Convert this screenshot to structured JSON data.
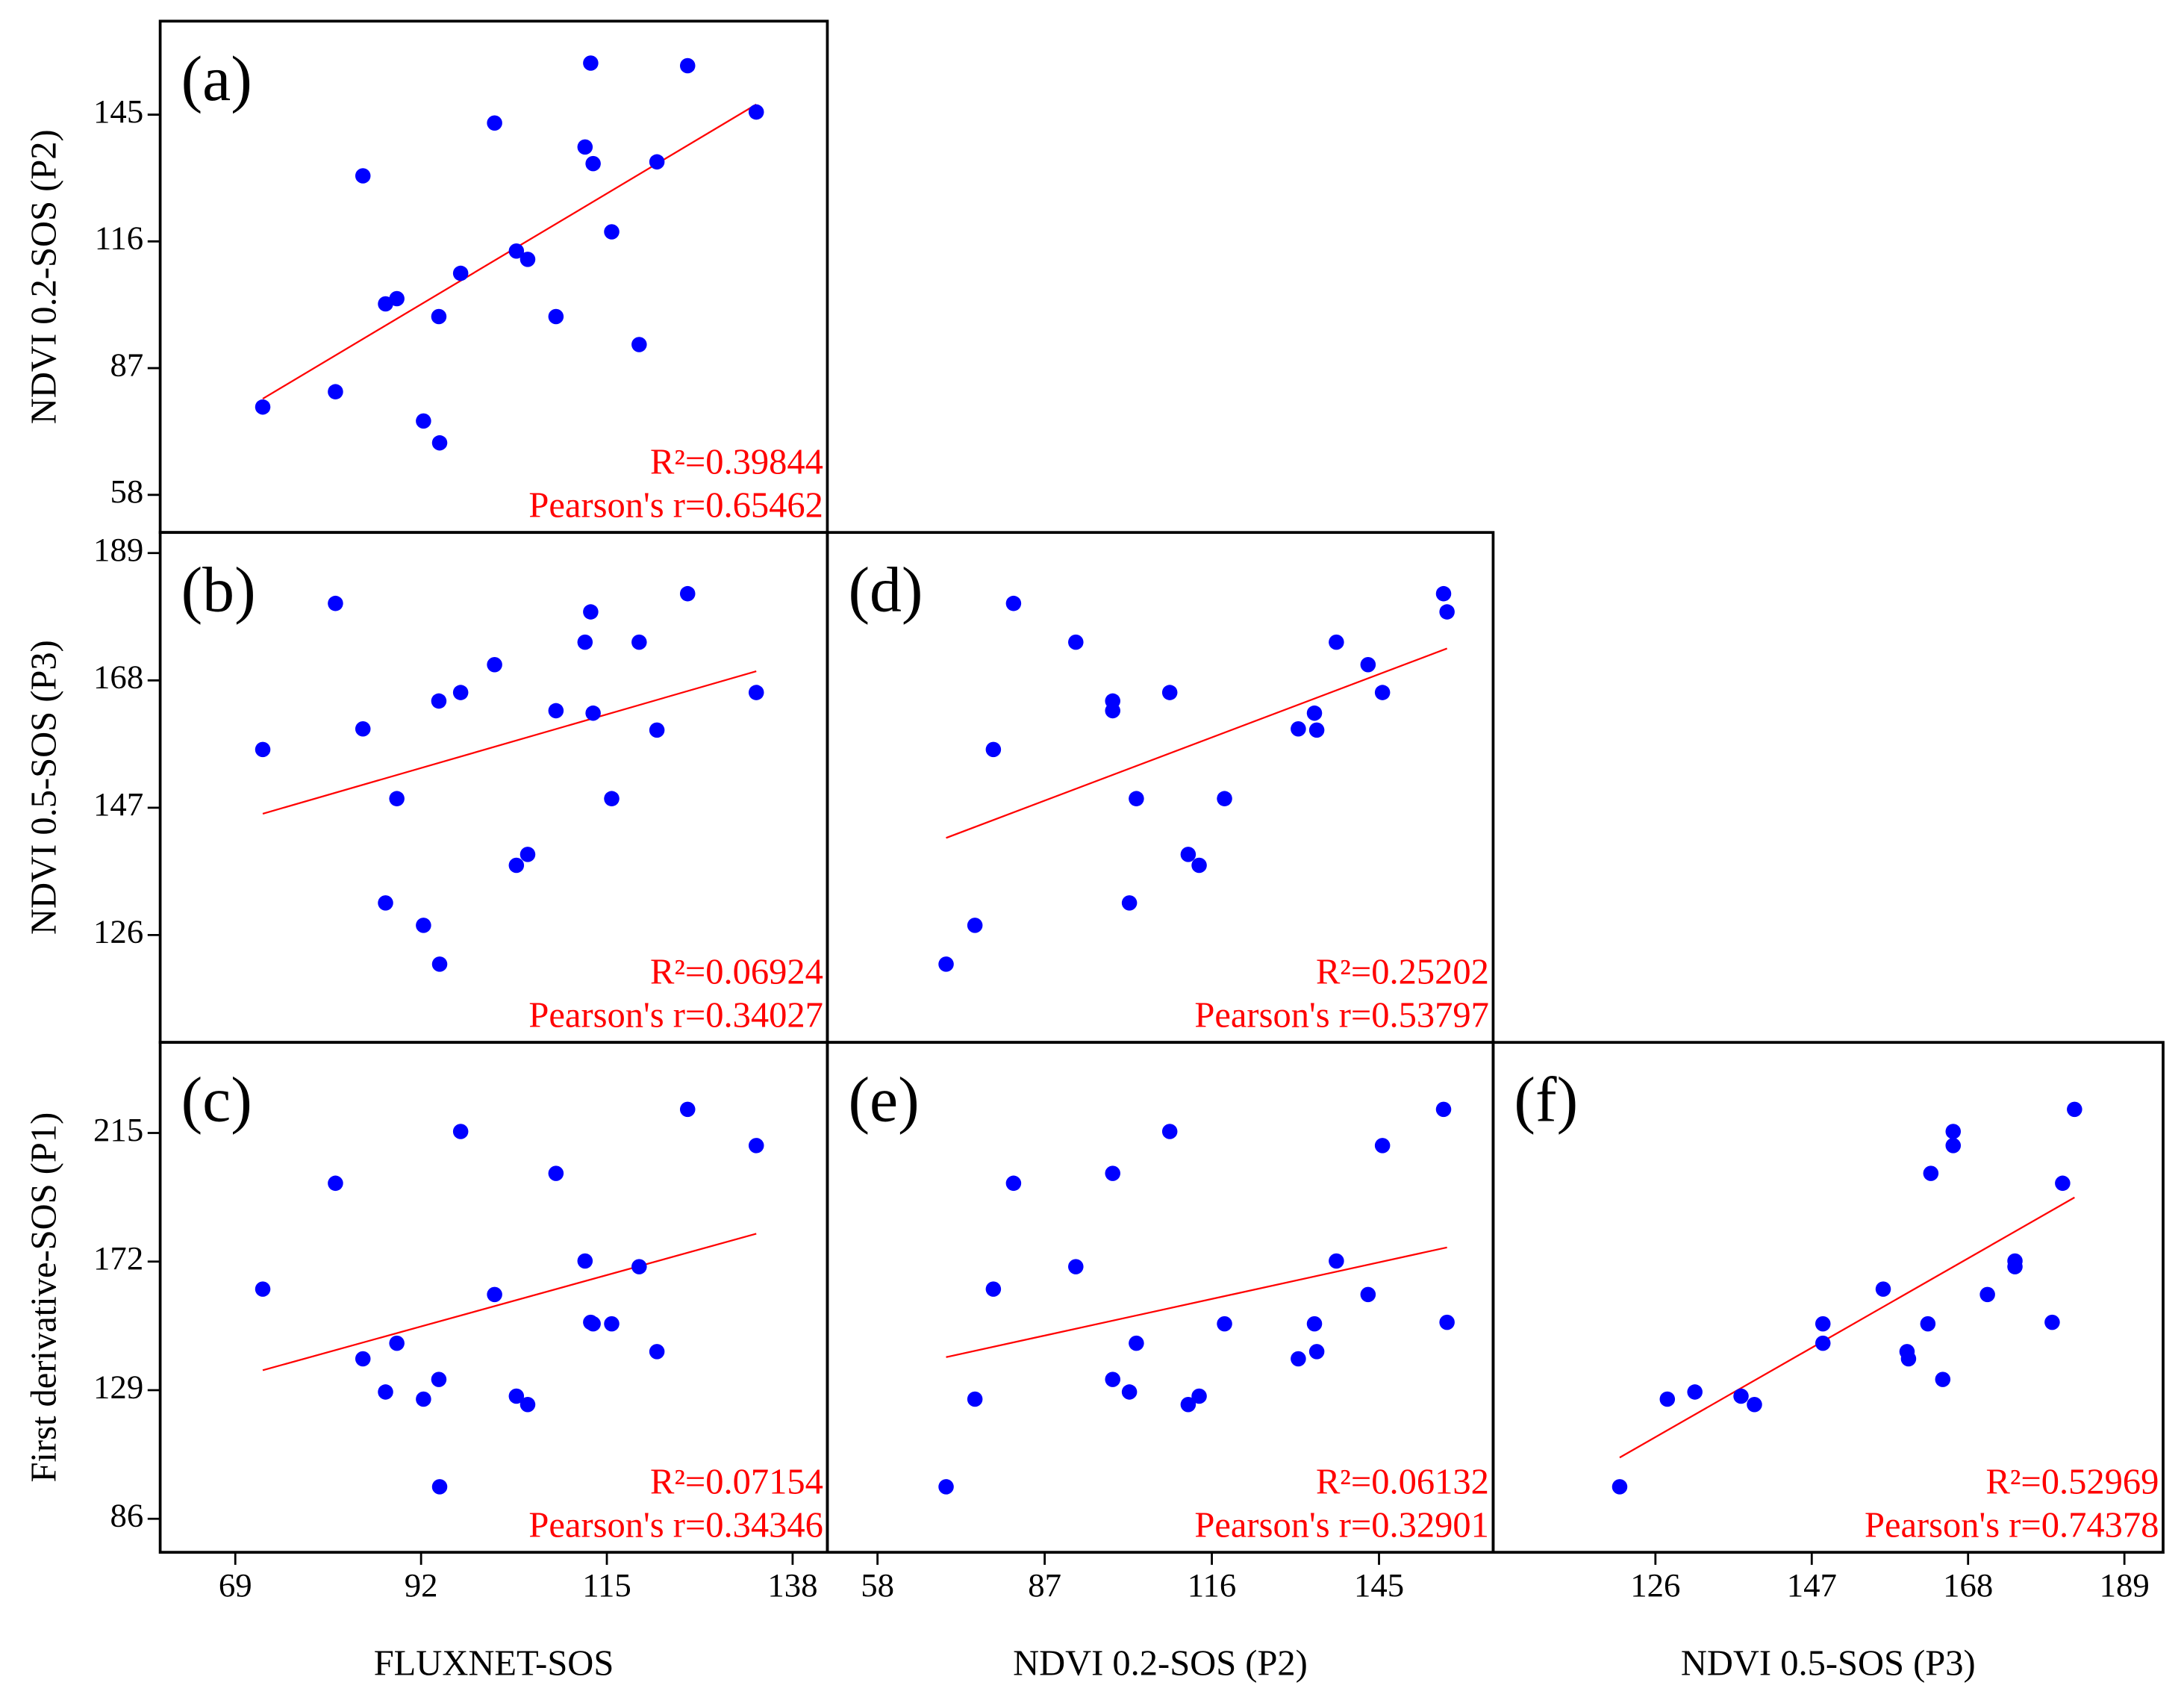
{
  "chart_data": [
    {
      "type": "scatter",
      "panel_label": "(a)",
      "ylabel": "NDVI 0.2-SOS (P2)",
      "x": [
        72.4,
        81.4,
        84.8,
        87.6,
        89.0,
        92.3,
        94.2,
        94.3,
        96.9,
        101.1,
        103.8,
        105.2,
        108.7,
        112.3,
        113.0,
        113.3,
        115.6,
        119.0,
        121.2,
        125.0,
        133.5
      ],
      "y": [
        78.1,
        81.6,
        131.0,
        101.7,
        102.9,
        74.9,
        98.8,
        69.9,
        108.7,
        143.1,
        113.8,
        111.9,
        98.8,
        137.6,
        156.8,
        133.8,
        118.2,
        92.4,
        134.2,
        156.2,
        145.6
      ],
      "xlim": [
        59.7,
        142.3
      ],
      "ylim": [
        49.4,
        166.4
      ],
      "yticks": [
        58,
        87,
        116,
        145
      ],
      "annotations": [
        "R²=0.39844",
        "Pearson's r=0.65462"
      ],
      "color": "#0000ff",
      "fit_color": "#ff0000"
    },
    {
      "type": "scatter",
      "panel_label": "(b)",
      "ylabel": "NDVI 0.5-SOS (P3)",
      "x": [
        72.4,
        81.4,
        84.8,
        87.6,
        89.0,
        92.3,
        94.2,
        94.3,
        96.9,
        101.1,
        103.8,
        105.2,
        108.7,
        112.3,
        113.0,
        113.3,
        115.6,
        119.0,
        121.2,
        125.0,
        133.5
      ],
      "y": [
        156.6,
        180.7,
        160.0,
        131.3,
        148.5,
        127.6,
        164.6,
        121.2,
        166.0,
        170.6,
        137.5,
        139.3,
        163.0,
        174.3,
        179.3,
        162.6,
        148.5,
        174.3,
        159.8,
        182.3,
        166.0
      ],
      "xlim": [
        59.7,
        142.3
      ],
      "ylim": [
        108.3,
        192.4
      ],
      "yticks": [
        126,
        147,
        168,
        189
      ],
      "annotations": [
        "R²=0.06924",
        "Pearson's r=0.34027"
      ],
      "color": "#0000ff",
      "fit_color": "#ff0000"
    },
    {
      "type": "scatter",
      "panel_label": "(c)",
      "ylabel": "First derivative-SOS (P1)",
      "xlabel": "FLUXNET-SOS",
      "x": [
        72.4,
        81.4,
        84.8,
        87.6,
        89.0,
        92.3,
        94.2,
        94.3,
        96.9,
        101.1,
        103.8,
        105.2,
        108.7,
        112.3,
        113.0,
        113.3,
        115.6,
        119.0,
        121.2,
        125.0,
        133.5
      ],
      "y": [
        162.8,
        198.2,
        139.5,
        128.4,
        144.7,
        126.0,
        132.6,
        96.7,
        215.5,
        161.0,
        127.0,
        124.2,
        201.5,
        172.2,
        151.7,
        151.2,
        151.2,
        170.3,
        141.9,
        222.9,
        210.8
      ],
      "xlim": [
        59.7,
        142.3
      ],
      "ylim": [
        74.8,
        245.3
      ],
      "xticks": [
        69,
        92,
        115,
        138
      ],
      "yticks": [
        86,
        129,
        172,
        215
      ],
      "annotations": [
        "R²=0.07154",
        "Pearson's r=0.34346"
      ],
      "color": "#0000ff",
      "fit_color": "#ff0000"
    },
    {
      "type": "scatter",
      "panel_label": "(d)",
      "x": [
        78.1,
        81.6,
        131.0,
        101.7,
        102.9,
        74.9,
        98.8,
        69.9,
        108.7,
        143.1,
        113.8,
        111.9,
        98.8,
        137.6,
        156.8,
        133.8,
        118.2,
        92.4,
        134.2,
        156.2,
        145.6
      ],
      "y": [
        156.6,
        180.7,
        160.0,
        131.3,
        148.5,
        127.6,
        164.6,
        121.2,
        166.0,
        170.6,
        137.5,
        139.3,
        163.0,
        174.3,
        179.3,
        162.6,
        148.5,
        174.3,
        159.8,
        182.3,
        166.0
      ],
      "xlim": [
        49.3,
        164.8
      ],
      "ylim": [
        108.3,
        192.4
      ],
      "annotations": [
        "R²=0.25202",
        "Pearson's r=0.53797"
      ],
      "color": "#0000ff",
      "fit_color": "#ff0000"
    },
    {
      "type": "scatter",
      "panel_label": "(e)",
      "xlabel": "NDVI 0.2-SOS (P2)",
      "x": [
        78.1,
        81.6,
        131.0,
        101.7,
        102.9,
        74.9,
        98.8,
        69.9,
        108.7,
        143.1,
        113.8,
        111.9,
        98.8,
        137.6,
        156.8,
        133.8,
        118.2,
        92.4,
        134.2,
        156.2,
        145.6
      ],
      "y": [
        162.8,
        198.2,
        139.5,
        128.4,
        144.7,
        126.0,
        132.6,
        96.7,
        215.5,
        161.0,
        127.0,
        124.2,
        201.5,
        172.2,
        151.7,
        151.2,
        151.2,
        170.3,
        141.9,
        222.9,
        210.8
      ],
      "xlim": [
        49.3,
        164.8
      ],
      "ylim": [
        74.8,
        245.3
      ],
      "xticks": [
        58,
        87,
        116,
        145
      ],
      "annotations": [
        "R²=0.06132",
        "Pearson's r=0.32901"
      ],
      "color": "#0000ff",
      "fit_color": "#ff0000"
    },
    {
      "type": "scatter",
      "panel_label": "(f)",
      "xlabel": "NDVI 0.5-SOS (P3)",
      "x": [
        156.6,
        180.7,
        160.0,
        131.3,
        148.5,
        127.6,
        164.6,
        121.2,
        166.0,
        170.6,
        137.5,
        139.3,
        163.0,
        174.3,
        179.3,
        162.6,
        148.5,
        174.3,
        159.8,
        182.3,
        166.0
      ],
      "y": [
        162.8,
        198.2,
        139.5,
        128.4,
        144.7,
        126.0,
        132.6,
        96.7,
        215.5,
        161.0,
        127.0,
        124.2,
        201.5,
        172.2,
        151.7,
        151.2,
        151.2,
        170.3,
        141.9,
        222.9,
        210.8
      ],
      "xlim": [
        104.2,
        194.2
      ],
      "ylim": [
        74.8,
        245.3
      ],
      "xticks": [
        126,
        147,
        168,
        189
      ],
      "annotations": [
        "R²=0.52969",
        "Pearson's r=0.74378"
      ],
      "color": "#0000ff",
      "fit_color": "#ff0000"
    }
  ]
}
